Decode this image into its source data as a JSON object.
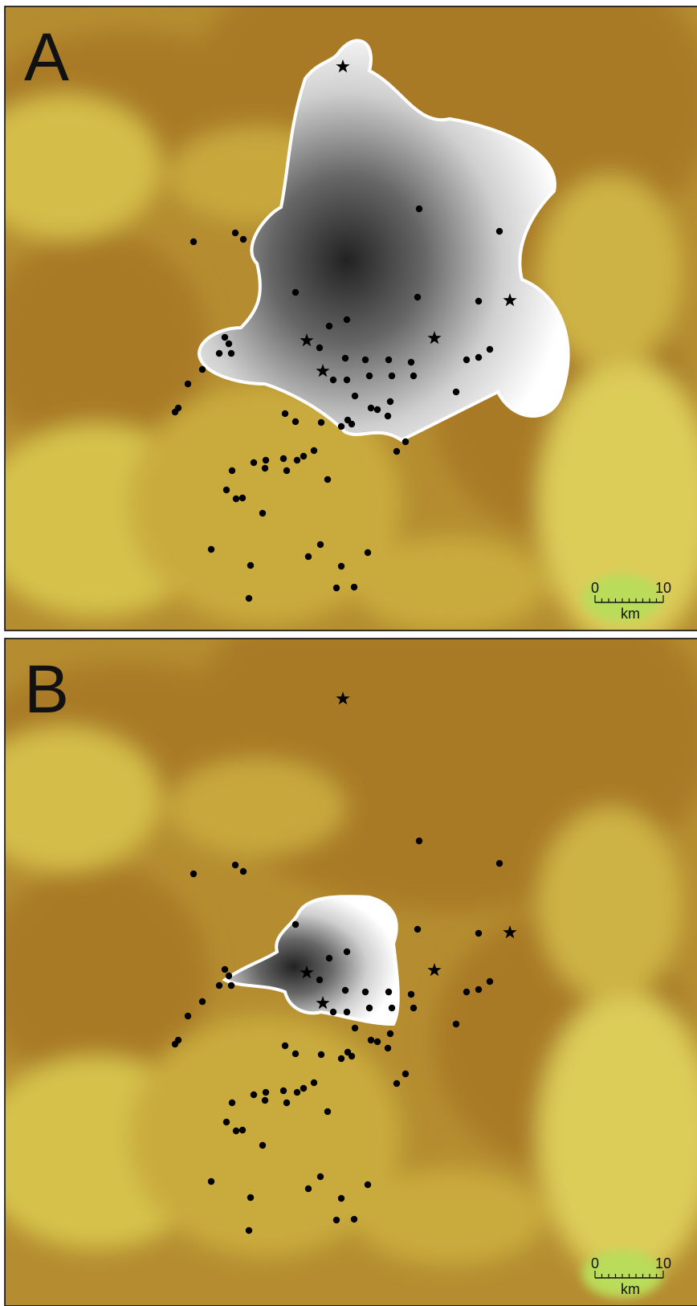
{
  "panels": [
    {
      "label": "A",
      "scale_bar": {
        "start": "0",
        "end": "10",
        "unit": "km"
      }
    },
    {
      "label": "B",
      "scale_bar": {
        "start": "0",
        "end": "10",
        "unit": "km"
      }
    }
  ]
}
